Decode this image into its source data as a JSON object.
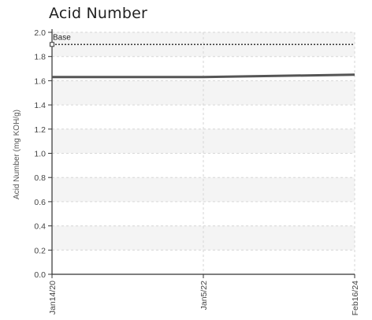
{
  "chart_data": {
    "type": "line",
    "title": "Acid Number",
    "xlabel": "",
    "ylabel": "Acid Number (mg KOH/g)",
    "x": [
      "Jan14/20",
      "Jan5/22",
      "Feb16/24"
    ],
    "ylim": [
      0,
      2.0
    ],
    "yticks": [
      "0.0",
      "0.2",
      "0.4",
      "0.6",
      "0.8",
      "1.0",
      "1.2",
      "1.4",
      "1.6",
      "1.8",
      "2.0"
    ],
    "grid": true,
    "series": [
      {
        "name": "",
        "values": [
          1.63,
          1.63,
          1.65
        ],
        "color": "#555555",
        "style": "solid"
      },
      {
        "name": "Base",
        "values": [
          1.9,
          1.9,
          1.9
        ],
        "color": "#333333",
        "style": "dotted"
      }
    ]
  }
}
